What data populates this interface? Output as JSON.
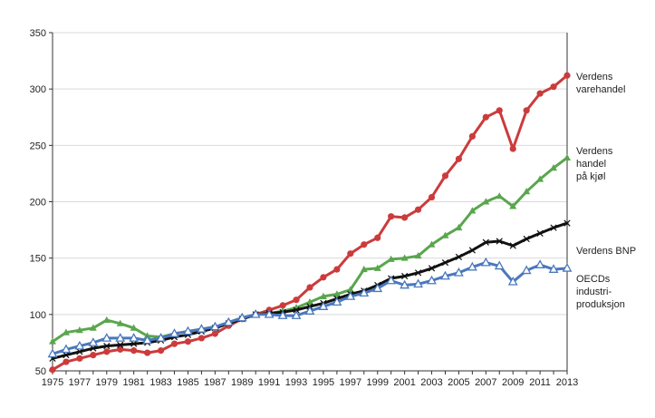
{
  "chart_data": {
    "type": "line",
    "title": "",
    "xlabel": "",
    "ylabel": "",
    "ylim": [
      50,
      350
    ],
    "yticks": [
      "50",
      "100",
      "150",
      "200",
      "250",
      "300",
      "350"
    ],
    "xticks": [
      "1975",
      "1977",
      "1979",
      "1981",
      "1983",
      "1985",
      "1987",
      "1989",
      "1991",
      "1993",
      "1995",
      "1997",
      "1999",
      "2001",
      "2003",
      "2005",
      "2007",
      "2009",
      "2011",
      "2013"
    ],
    "x": [
      1975,
      1976,
      1977,
      1978,
      1979,
      1980,
      1981,
      1982,
      1983,
      1984,
      1985,
      1986,
      1987,
      1988,
      1989,
      1990,
      1991,
      1992,
      1993,
      1994,
      1995,
      1996,
      1997,
      1998,
      1999,
      2000,
      2001,
      2002,
      2003,
      2004,
      2005,
      2006,
      2007,
      2008,
      2009,
      2010,
      2011,
      2012,
      2013
    ],
    "series": [
      {
        "name": "Verdens varehandel",
        "label_lines": [
          "Verdens",
          "varehandel"
        ],
        "color": "#cc3b3b",
        "marker": "circle",
        "values": [
          51,
          58,
          61,
          64,
          67,
          69,
          68,
          66,
          68,
          74,
          76,
          79,
          83,
          90,
          96,
          100,
          104,
          108,
          113,
          124,
          133,
          140,
          154,
          162,
          168,
          187,
          186,
          193,
          204,
          223,
          238,
          258,
          275,
          281,
          247,
          281,
          296,
          302,
          312
        ]
      },
      {
        "name": "Verdens handel på kjøl",
        "label_lines": [
          "Verdens",
          "handel",
          "på kjøl"
        ],
        "color": "#5aa64e",
        "marker": "triangle",
        "values": [
          76,
          84,
          86,
          88,
          95,
          92,
          88,
          81,
          80,
          83,
          85,
          87,
          89,
          93,
          97,
          100,
          101,
          103,
          106,
          111,
          116,
          118,
          122,
          140,
          141,
          149,
          150,
          152,
          162,
          170,
          177,
          192,
          200,
          205,
          196,
          209,
          220,
          230,
          239
        ]
      },
      {
        "name": "Verdens BNP",
        "label_lines": [
          "Verdens BNP"
        ],
        "color": "#111111",
        "marker": "x",
        "values": [
          61,
          64,
          67,
          70,
          72,
          73,
          74,
          75,
          77,
          80,
          82,
          85,
          88,
          92,
          96,
          100,
          101,
          102,
          104,
          107,
          110,
          114,
          118,
          121,
          126,
          132,
          134,
          137,
          141,
          146,
          151,
          157,
          164,
          165,
          161,
          167,
          172,
          177,
          181
        ]
      },
      {
        "name": "OECDs industri-produksjon",
        "label_lines": [
          "OECDs",
          "industri-",
          "produksjon"
        ],
        "color": "#4a78bd",
        "marker": "triangle-open",
        "values": [
          65,
          69,
          72,
          75,
          79,
          79,
          79,
          77,
          79,
          83,
          85,
          87,
          89,
          93,
          97,
          100,
          100,
          99,
          99,
          103,
          107,
          111,
          116,
          119,
          123,
          130,
          126,
          127,
          130,
          134,
          137,
          142,
          146,
          143,
          129,
          139,
          144,
          140,
          141
        ]
      }
    ]
  }
}
